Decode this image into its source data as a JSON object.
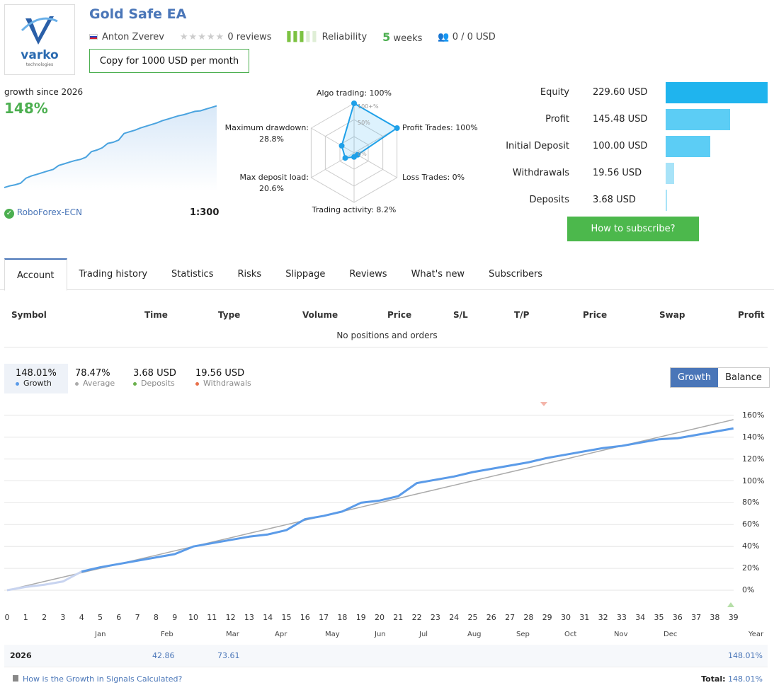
{
  "header": {
    "title": "Gold Safe EA",
    "logo_text": "varko",
    "logo_sub": "technologies",
    "author": "Anton Zverev",
    "reviews": "0 reviews",
    "rating": 0,
    "reliability": "Reliability",
    "reliability_level": 3,
    "weeks_num": "5",
    "weeks_label": "weeks",
    "subscribers": "0 / 0 USD",
    "copy_button": "Copy for 1000 USD per month"
  },
  "mini": {
    "label": "growth since 2026",
    "value": "148%",
    "broker": "RoboForex-ECN",
    "leverage": "1:300"
  },
  "radar": {
    "labels": [
      "Algo trading: 100%",
      "Profit Trades: 100%",
      "Loss Trades: 0%",
      "Trading activity: 8.2%",
      "Max deposit load:\n20.6%",
      "Maximum drawdown:\n28.8%"
    ],
    "values": [
      100,
      100,
      0,
      8.2,
      20.6,
      28.8
    ],
    "rings": [
      "100+%",
      "50%",
      "0%"
    ]
  },
  "stats": [
    {
      "label": "Equity",
      "value": "229.60 USD",
      "amount": 229.6,
      "color": "#1fb4ee"
    },
    {
      "label": "Profit",
      "value": "145.48 USD",
      "amount": 145.48,
      "color": "#5ccdf5"
    },
    {
      "label": "Initial Deposit",
      "value": "100.00 USD",
      "amount": 100,
      "color": "#5ccdf5"
    },
    {
      "label": "Withdrawals",
      "value": "19.56 USD",
      "amount": 19.56,
      "color": "#a8e3f8"
    },
    {
      "label": "Deposits",
      "value": "3.68 USD",
      "amount": 3.68,
      "color": "#a8e3f8"
    }
  ],
  "subscribe_button": "How to subscribe?",
  "tabs": [
    "Account",
    "Trading history",
    "Statistics",
    "Risks",
    "Slippage",
    "Reviews",
    "What's new",
    "Subscribers"
  ],
  "positions": {
    "columns": [
      "Symbol",
      "Time",
      "Type",
      "Volume",
      "Price",
      "S/L",
      "T/P",
      "Price",
      "Swap",
      "Profit"
    ],
    "empty": "No positions and orders"
  },
  "summary": [
    {
      "value": "148.01%",
      "label": "Growth",
      "color": "#5b9be8"
    },
    {
      "value": "78.47%",
      "label": "Average",
      "color": "#aaaaaa"
    },
    {
      "value": "3.68 USD",
      "label": "Deposits",
      "color": "#6ab04c"
    },
    {
      "value": "19.56 USD",
      "label": "Withdrawals",
      "color": "#e8704a"
    }
  ],
  "toggle": {
    "growth": "Growth",
    "balance": "Balance"
  },
  "chart_data": {
    "type": "line",
    "x": [
      0,
      1,
      2,
      3,
      4,
      5,
      6,
      7,
      8,
      9,
      10,
      11,
      12,
      13,
      14,
      15,
      16,
      17,
      18,
      19,
      20,
      21,
      22,
      23,
      24,
      25,
      26,
      27,
      28,
      29,
      30,
      31,
      32,
      33,
      34,
      35,
      36,
      37,
      38,
      39
    ],
    "series": [
      {
        "name": "Growth",
        "values": [
          0,
          3,
          5,
          8,
          17,
          21,
          24,
          27,
          30,
          33,
          40,
          43,
          46,
          49,
          51,
          55,
          65,
          68,
          72,
          80,
          82,
          86,
          98,
          101,
          104,
          108,
          111,
          114,
          117,
          121,
          124,
          127,
          130,
          132,
          135,
          138,
          139,
          142,
          145,
          148
        ]
      },
      {
        "name": "Average",
        "values": [
          0,
          4,
          8,
          12,
          16,
          20,
          24,
          28,
          32,
          36,
          40,
          44,
          48,
          52,
          56,
          60,
          64,
          68,
          72,
          76,
          80,
          84,
          88,
          92,
          96,
          100,
          104,
          108,
          112,
          116,
          120,
          124,
          128,
          132,
          136,
          140,
          144,
          148,
          152,
          156
        ]
      }
    ],
    "yticks": [
      "0%",
      "20%",
      "40%",
      "60%",
      "80%",
      "100%",
      "120%",
      "140%",
      "160%"
    ],
    "ylim": [
      0,
      160
    ],
    "xlim": [
      0,
      39
    ],
    "grid": true,
    "months": [
      "Jan",
      "Feb",
      "Mar",
      "Apr",
      "May",
      "Jun",
      "Jul",
      "Aug",
      "Sep",
      "Oct",
      "Nov",
      "Dec",
      "Year"
    ]
  },
  "yearly": {
    "year": "2026",
    "values": [
      "",
      "42.86",
      "73.61",
      "",
      "",
      "",
      "",
      "",
      "",
      "",
      "",
      "",
      ""
    ],
    "total_year": "148.01%"
  },
  "footer": {
    "link": "How is the Growth in Signals Calculated?",
    "total_label": "Total:",
    "total_value": "148.01%"
  }
}
